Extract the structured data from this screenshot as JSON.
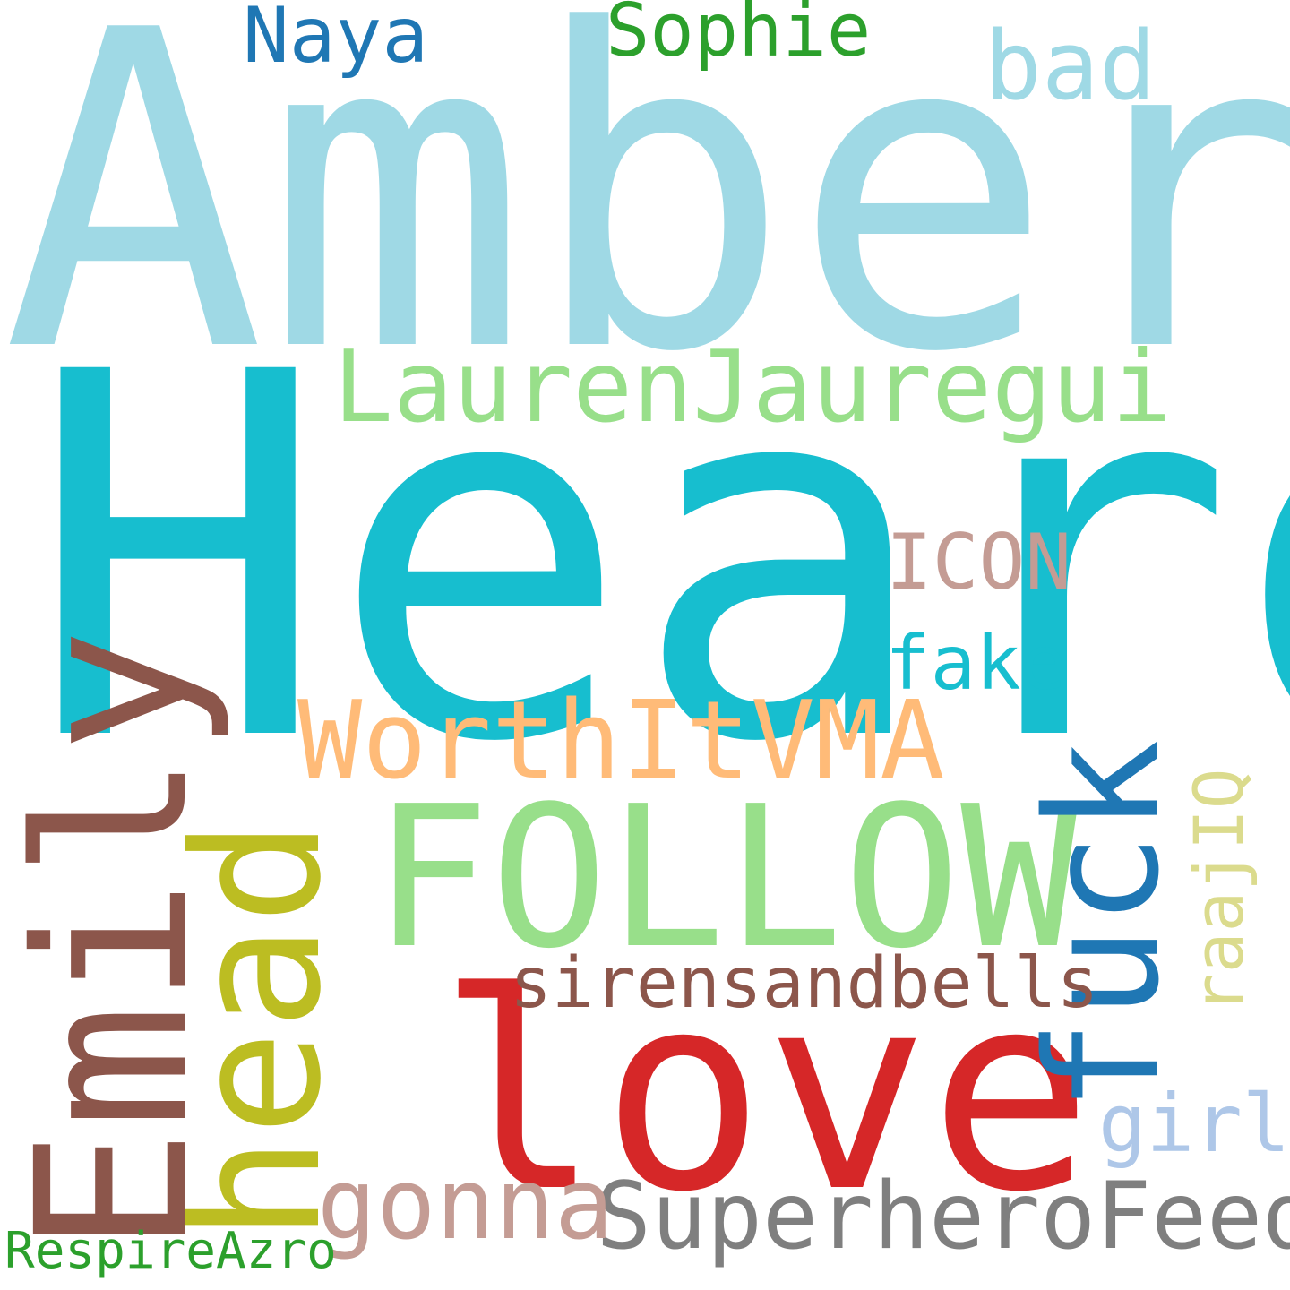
{
  "words": [
    {
      "id": "amber",
      "text": "Amber",
      "color": "#9fd9e5"
    },
    {
      "id": "heard",
      "text": "Heard",
      "color": "#17becf"
    },
    {
      "id": "laurenjauregui",
      "text": "LaurenJauregui",
      "color": "#98df8a"
    },
    {
      "id": "follow",
      "text": "FOLLOW",
      "color": "#98df8a"
    },
    {
      "id": "love",
      "text": "love",
      "color": "#d62728"
    },
    {
      "id": "emily",
      "text": "Emily",
      "color": "#8c564b"
    },
    {
      "id": "head",
      "text": "head",
      "color": "#bcbd22"
    },
    {
      "id": "fuck",
      "text": "fuck",
      "color": "#1f77b4"
    },
    {
      "id": "worthitvma",
      "text": "WorthItVMA",
      "color": "#ffbb78"
    },
    {
      "id": "sirensandbells",
      "text": "sirensandbells",
      "color": "#8c564b"
    },
    {
      "id": "superherofeed",
      "text": "SuperheroFeed",
      "color": "#7f7f7f"
    },
    {
      "id": "gonna",
      "text": "gonna",
      "color": "#c49c94"
    },
    {
      "id": "icon",
      "text": "ICON",
      "color": "#c49c94"
    },
    {
      "id": "fake",
      "text": "fake",
      "color": "#17becf"
    },
    {
      "id": "bad",
      "text": "bad",
      "color": "#9fd9e5"
    },
    {
      "id": "naya",
      "text": "Naya",
      "color": "#1f77b4"
    },
    {
      "id": "sophie",
      "text": "Sophie",
      "color": "#2ca02c"
    },
    {
      "id": "raajiq",
      "text": "raajIQ",
      "color": "#dbdb8d"
    },
    {
      "id": "girl",
      "text": "girl",
      "color": "#aec7e8"
    },
    {
      "id": "respireazro",
      "text": "RespireAzro",
      "color": "#2ca02c"
    }
  ]
}
